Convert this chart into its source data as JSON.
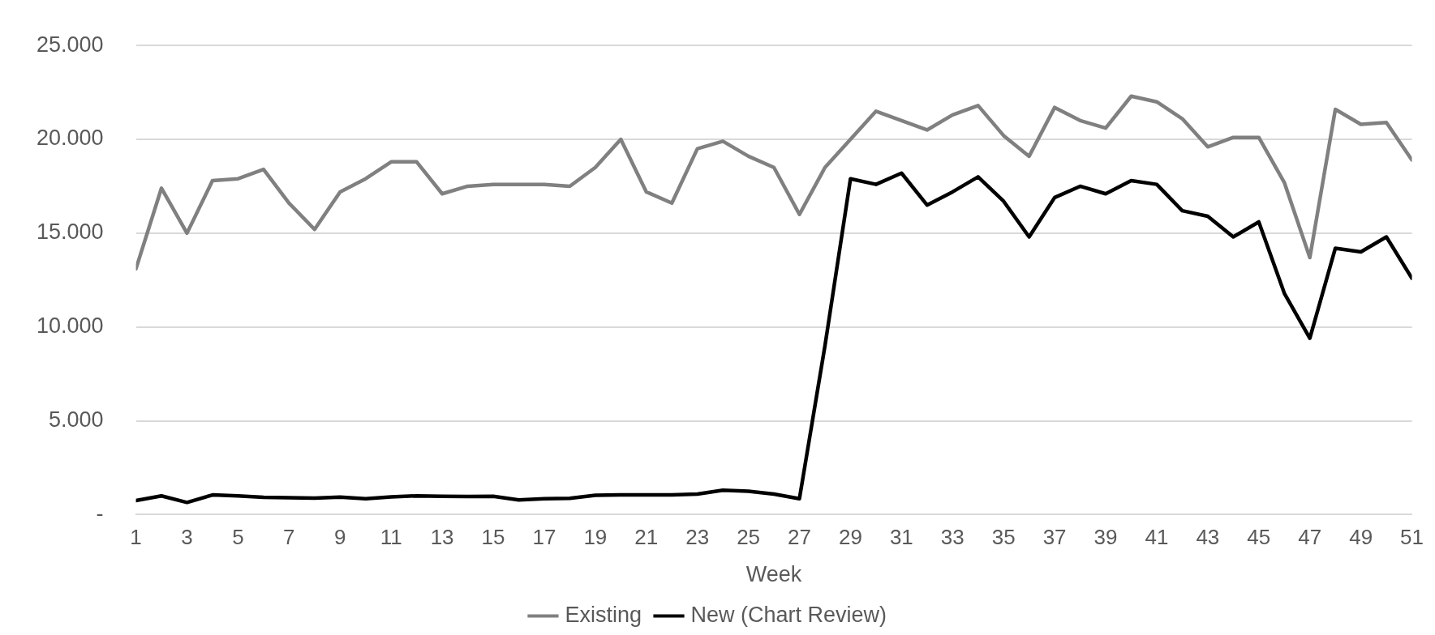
{
  "chart_data": {
    "type": "line",
    "xlabel": "Week",
    "x": [
      1,
      2,
      3,
      4,
      5,
      6,
      7,
      8,
      9,
      10,
      11,
      12,
      13,
      14,
      15,
      16,
      17,
      18,
      19,
      20,
      21,
      22,
      23,
      24,
      25,
      26,
      27,
      28,
      29,
      30,
      31,
      32,
      33,
      34,
      35,
      36,
      37,
      38,
      39,
      40,
      41,
      42,
      43,
      44,
      45,
      46,
      47,
      48,
      49,
      50,
      51
    ],
    "xlim": [
      1,
      51
    ],
    "xticks": [
      1,
      3,
      5,
      7,
      9,
      11,
      13,
      15,
      17,
      19,
      21,
      23,
      25,
      27,
      29,
      31,
      33,
      35,
      37,
      39,
      41,
      43,
      45,
      47,
      49,
      51
    ],
    "series": [
      {
        "name": "Existing",
        "color": "#808080",
        "values": [
          13100,
          17400,
          15000,
          17800,
          17900,
          18400,
          16600,
          15200,
          17200,
          17900,
          18800,
          18800,
          17100,
          17500,
          17600,
          17600,
          17600,
          17500,
          18500,
          20000,
          17200,
          16600,
          19500,
          19900,
          19100,
          18500,
          16000,
          18500,
          20000,
          21500,
          21000,
          20500,
          21300,
          21800,
          20200,
          19100,
          21700,
          21000,
          20600,
          22300,
          22000,
          21100,
          19600,
          20100,
          20100,
          17700,
          13700,
          21600,
          20800,
          20900,
          18900
        ]
      },
      {
        "name": "New (Chart Review)",
        "color": "#000000",
        "values": [
          750,
          1000,
          650,
          1050,
          1000,
          920,
          900,
          880,
          930,
          850,
          950,
          1000,
          980,
          970,
          980,
          780,
          850,
          870,
          1030,
          1050,
          1050,
          1050,
          1100,
          1300,
          1250,
          1100,
          850,
          9000,
          17900,
          17600,
          18200,
          16500,
          17200,
          18000,
          16700,
          14800,
          16900,
          17500,
          17100,
          17800,
          17600,
          16200,
          15900,
          14800,
          15600,
          11800,
          9400,
          14200,
          14000,
          14800,
          12600
        ]
      }
    ],
    "ylim": [
      0,
      25000
    ],
    "yticks": [
      {
        "value": 0,
        "label": "-"
      },
      {
        "value": 5000,
        "label": "5.000"
      },
      {
        "value": 10000,
        "label": "10.000"
      },
      {
        "value": 15000,
        "label": "15.000"
      },
      {
        "value": 20000,
        "label": "20.000"
      },
      {
        "value": 25000,
        "label": "25.000"
      }
    ],
    "grid": "y",
    "legend": "bottom",
    "marker": "none",
    "line_style": "solid"
  }
}
